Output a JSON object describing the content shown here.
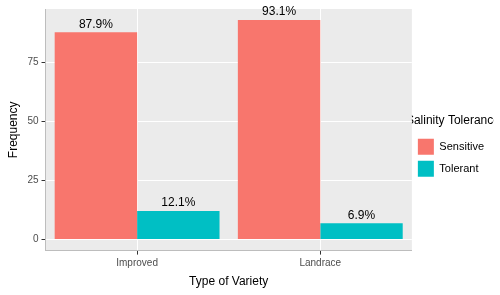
{
  "chart_data": {
    "type": "bar",
    "x_label": "Type of Variety",
    "y_label": "Frequency",
    "categories": [
      "Improved",
      "Landrace"
    ],
    "series": [
      {
        "name": "Sensitive",
        "color": "#F8766D",
        "values": [
          87.9,
          93.1
        ],
        "value_labels": [
          "87.9%",
          "93.1%"
        ]
      },
      {
        "name": "Tolerant",
        "color": "#00BFC4",
        "values": [
          12.1,
          6.9
        ],
        "value_labels": [
          "12.1%",
          "6.9%"
        ]
      }
    ],
    "ylim": [
      -4.7,
      97.8
    ],
    "yticks": [
      0,
      25,
      50,
      75
    ],
    "grid": true,
    "legend": "right",
    "legend_title": "Salinity Tolerance",
    "data_labels": true
  }
}
